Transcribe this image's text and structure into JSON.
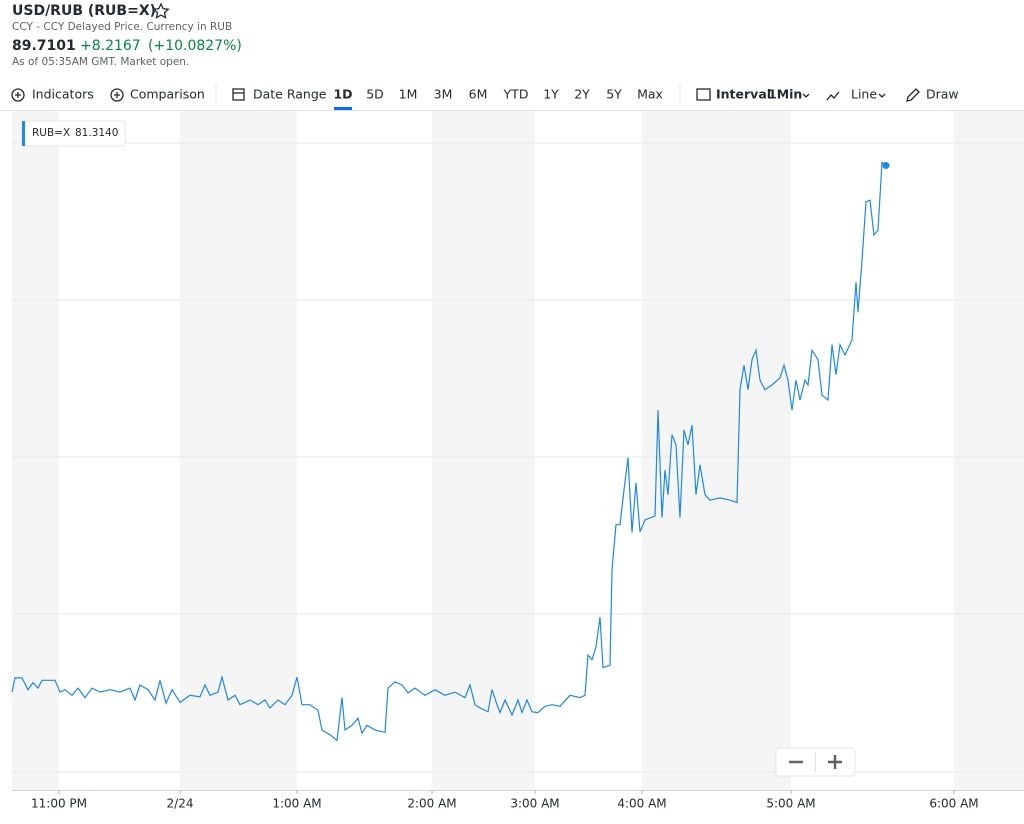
{
  "header": {
    "title": "USD/RUB (RUB=X)",
    "subtitle": "CCY - CCY Delayed Price. Currency in RUB",
    "price": "89.7101",
    "change": "+8.2167",
    "change_percent": "(+10.0827%)",
    "as_of": "As of 05:35AM GMT. Market open."
  },
  "toolbar": {
    "indicators": "Indicators",
    "comparison": "Comparison",
    "date_range": "Date Range",
    "ranges": [
      "1D",
      "5D",
      "1M",
      "3M",
      "6M",
      "YTD",
      "1Y",
      "2Y",
      "5Y",
      "Max"
    ],
    "interval": "Interval",
    "interval_value": "1Min",
    "chart_type": "Line",
    "draw": "Draw"
  },
  "chart_data": {
    "type": "line",
    "x": [
      0,
      3,
      10,
      16,
      21,
      26,
      30,
      43,
      48,
      53,
      60,
      66,
      73,
      80,
      88,
      98,
      108,
      118,
      123,
      128,
      136,
      143,
      148,
      154,
      160,
      168,
      178,
      188,
      193,
      198,
      206,
      210,
      216,
      223,
      228,
      238,
      246,
      253,
      258,
      266,
      273,
      280,
      285,
      290,
      298,
      306,
      310,
      318,
      325,
      330,
      333,
      340,
      346,
      350,
      355,
      363,
      373,
      376,
      383,
      390,
      396,
      403,
      413,
      423,
      433,
      443,
      453,
      458,
      463,
      468,
      476,
      480,
      485,
      488,
      493,
      500,
      506,
      510,
      515,
      520,
      526,
      533,
      540,
      548,
      558,
      568,
      573,
      576,
      580,
      584,
      588,
      591,
      598,
      600,
      604,
      608,
      612,
      616,
      620,
      624,
      628,
      633,
      643,
      646,
      650,
      653,
      656,
      660,
      664,
      668,
      672,
      676,
      680,
      684,
      688,
      693,
      698,
      708,
      718,
      725,
      728,
      732,
      736,
      740,
      744,
      748,
      753,
      760,
      768,
      772,
      776,
      780,
      784,
      788,
      793,
      796,
      800,
      806,
      810,
      816,
      820,
      824,
      828,
      833,
      840,
      844,
      846,
      850,
      854,
      858,
      862,
      866,
      870,
      874
    ],
    "series": [
      {
        "name": "RUB=X",
        "color": "#1e88e5",
        "values": [
          83.04,
          83.22,
          83.22,
          83.07,
          83.16,
          83.09,
          83.19,
          83.19,
          83.04,
          83.07,
          83.0,
          83.09,
          82.97,
          83.09,
          83.04,
          83.07,
          83.04,
          83.09,
          82.94,
          83.13,
          83.07,
          82.94,
          83.19,
          82.9,
          83.07,
          82.91,
          83.0,
          82.98,
          83.13,
          83.0,
          83.04,
          83.23,
          82.94,
          83.0,
          82.88,
          82.94,
          82.88,
          82.94,
          82.84,
          82.94,
          82.88,
          83.0,
          83.23,
          82.88,
          82.88,
          82.81,
          82.56,
          82.5,
          82.43,
          82.97,
          82.56,
          82.62,
          82.71,
          82.52,
          82.62,
          82.56,
          82.53,
          83.09,
          83.17,
          83.13,
          83.03,
          83.09,
          83.0,
          83.07,
          83.0,
          83.04,
          82.97,
          83.13,
          82.88,
          82.84,
          82.79,
          83.07,
          82.88,
          82.78,
          82.94,
          82.75,
          82.94,
          82.78,
          82.94,
          82.79,
          82.78,
          82.86,
          82.88,
          82.86,
          83.0,
          82.97,
          83.0,
          83.51,
          83.45,
          83.61,
          83.99,
          83.35,
          83.38,
          84.59,
          85.16,
          85.16,
          85.6,
          86.01,
          85.06,
          85.69,
          85.07,
          85.22,
          85.27,
          86.61,
          85.25,
          85.85,
          85.54,
          86.3,
          86.17,
          85.25,
          86.36,
          86.17,
          86.42,
          85.54,
          85.92,
          85.54,
          85.47,
          85.5,
          85.47,
          85.44,
          86.87,
          87.18,
          86.87,
          87.25,
          87.37,
          86.99,
          86.87,
          86.93,
          87.02,
          87.18,
          86.99,
          86.61,
          86.99,
          86.74,
          86.99,
          86.93,
          87.37,
          87.25,
          86.8,
          86.74,
          87.44,
          87.06,
          87.44,
          87.31,
          87.5,
          88.23,
          87.85,
          88.51,
          89.25,
          89.27,
          88.83,
          88.89,
          89.75,
          89.7101
        ]
      }
    ],
    "xlim": [
      0,
      1012
    ],
    "ylim": [
      81.8,
      90.4
    ],
    "xticks": [
      {
        "value": 47,
        "label": "11:00 PM"
      },
      {
        "value": 168,
        "label": "2/24"
      },
      {
        "value": 285,
        "label": "1:00 AM"
      },
      {
        "value": 420,
        "label": "2:00 AM"
      },
      {
        "value": 523,
        "label": "3:00 AM"
      },
      {
        "value": 630,
        "label": "4:00 AM"
      },
      {
        "value": 779,
        "label": "5:00 AM"
      },
      {
        "value": 942,
        "label": "6:00 AM"
      }
    ],
    "tooltip_value": "81.3140"
  }
}
